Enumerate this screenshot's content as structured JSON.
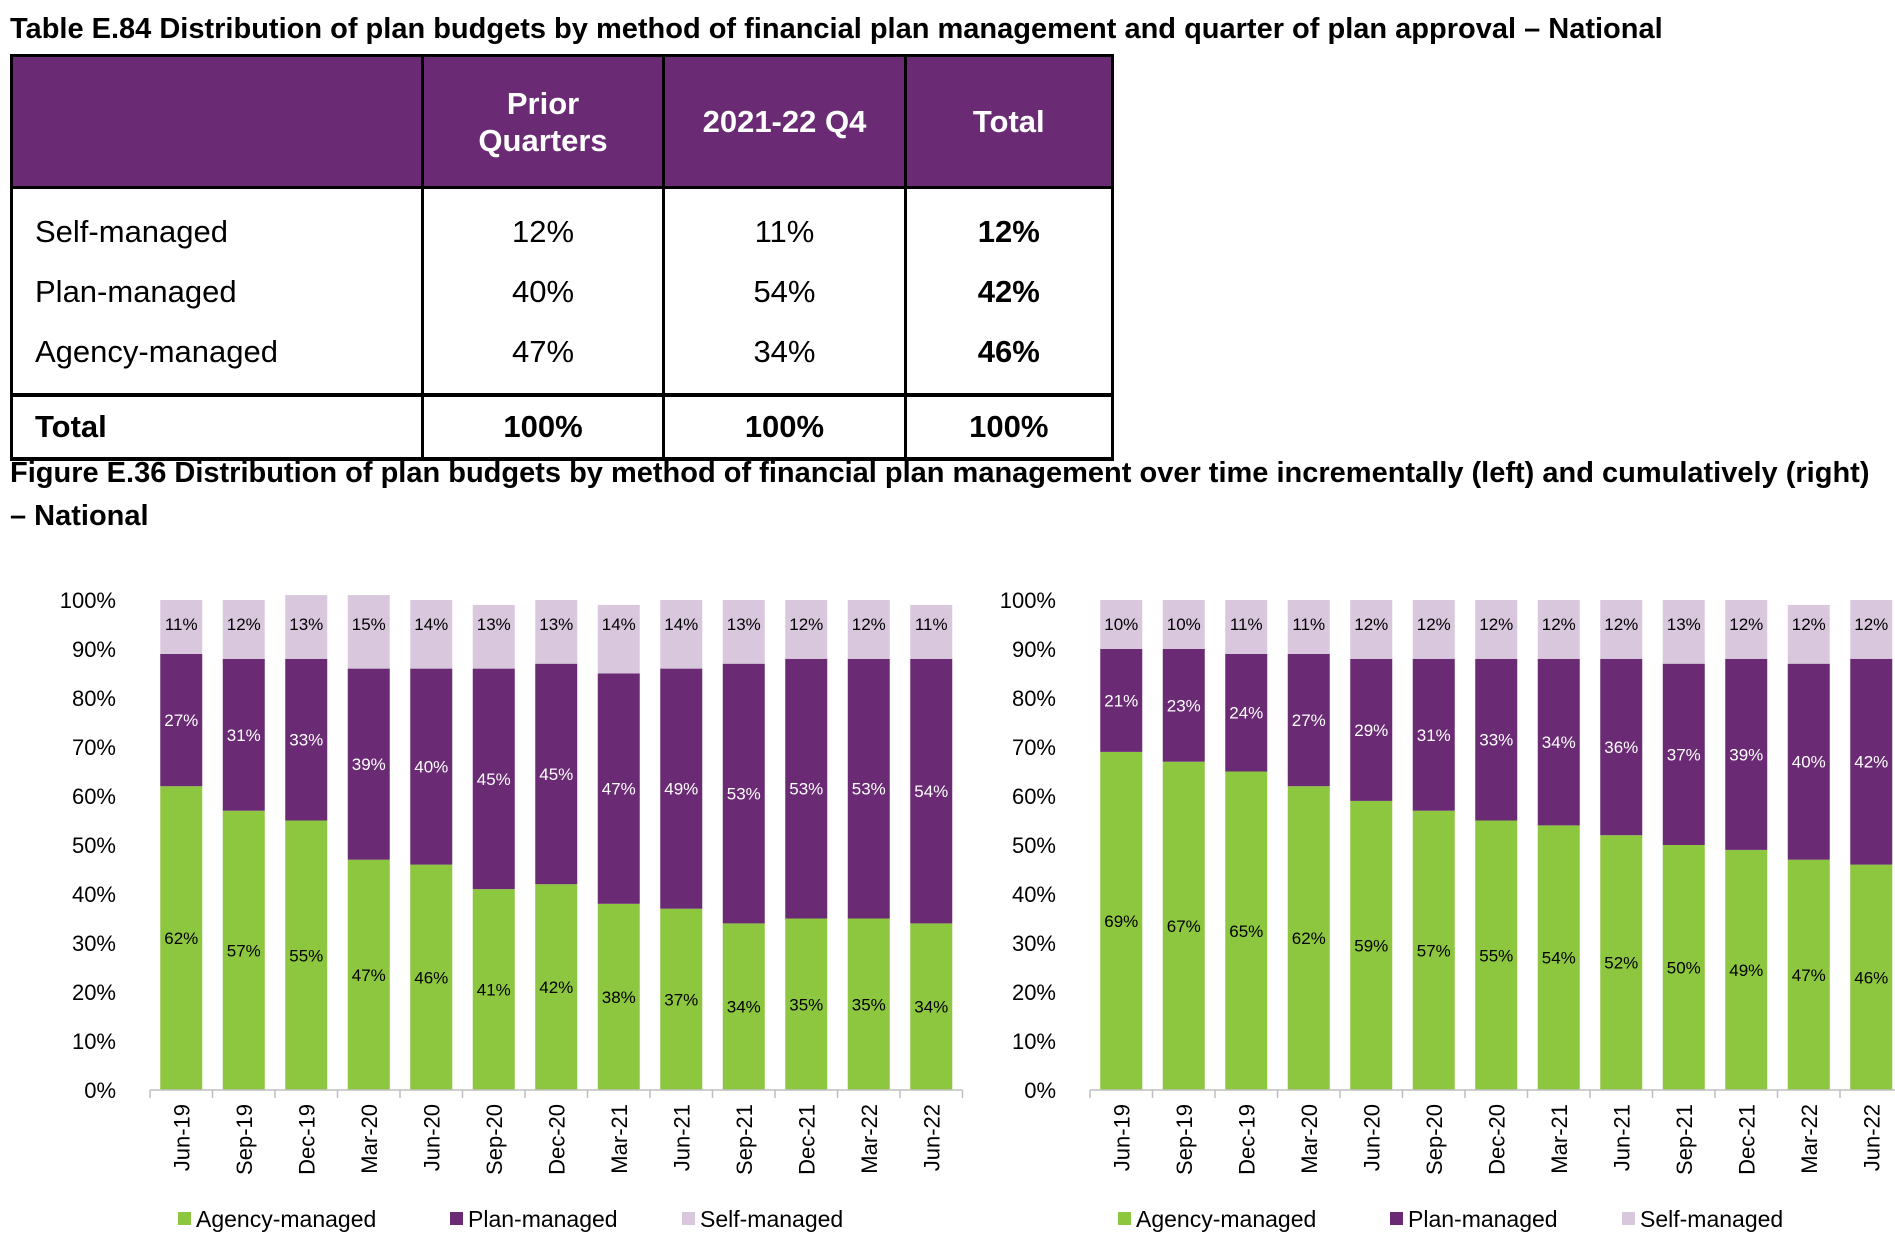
{
  "table": {
    "title": "Table E.84 Distribution of plan budgets by method of financial plan management and quarter of plan approval – National",
    "headers": [
      "",
      "Prior Quarters",
      "2021-22 Q4",
      "Total"
    ],
    "rows": [
      {
        "label": "Self-managed",
        "prior": "12%",
        "q4": "11%",
        "total": "12%"
      },
      {
        "label": "Plan-managed",
        "prior": "40%",
        "q4": "54%",
        "total": "42%"
      },
      {
        "label": "Agency-managed",
        "prior": "47%",
        "q4": "34%",
        "total": "46%"
      }
    ],
    "total_row": {
      "label": "Total",
      "prior": "100%",
      "q4": "100%",
      "total": "100%"
    }
  },
  "figure": {
    "title": "Figure E.36 Distribution of plan budgets by method of financial plan management over time incrementally (left) and cumulatively (right) – National"
  },
  "colors": {
    "agency": "#8dc63f",
    "plan": "#6a2a74",
    "self": "#d9c8dd",
    "header_bg": "#6a2a74"
  },
  "chart_data": [
    {
      "type": "bar",
      "stacked": true,
      "categories": [
        "Jun-19",
        "Sep-19",
        "Dec-19",
        "Mar-20",
        "Jun-20",
        "Sep-20",
        "Dec-20",
        "Mar-21",
        "Jun-21",
        "Sep-21",
        "Dec-21",
        "Mar-22",
        "Jun-22"
      ],
      "series": [
        {
          "name": "Agency-managed",
          "values": [
            62,
            57,
            55,
            47,
            46,
            41,
            42,
            38,
            37,
            34,
            35,
            35,
            34
          ],
          "labels": [
            "62%",
            "57%",
            "55%",
            "47%",
            "46%",
            "41%",
            "42%",
            "38%",
            "37%",
            "34%",
            "35%",
            "35%",
            "34%"
          ]
        },
        {
          "name": "Plan-managed",
          "values": [
            27,
            31,
            33,
            39,
            40,
            45,
            45,
            47,
            49,
            53,
            53,
            53,
            54
          ],
          "labels": [
            "27%",
            "31%",
            "33%",
            "39%",
            "40%",
            "45%",
            "45%",
            "47%",
            "49%",
            "53%",
            "53%",
            "53%",
            "54%"
          ]
        },
        {
          "name": "Self-managed",
          "values": [
            11,
            12,
            13,
            15,
            14,
            13,
            13,
            14,
            14,
            13,
            12,
            12,
            11
          ],
          "labels": [
            "11%",
            "12%",
            "13%",
            "15%",
            "14%",
            "13%",
            "13%",
            "14%",
            "14%",
            "13%",
            "12%",
            "12%",
            "11%"
          ]
        }
      ],
      "yticks": [
        "0%",
        "10%",
        "20%",
        "30%",
        "40%",
        "50%",
        "60%",
        "70%",
        "80%",
        "90%",
        "100%"
      ],
      "ylim": [
        0,
        100
      ],
      "legend": "bottom"
    },
    {
      "type": "bar",
      "stacked": true,
      "categories": [
        "Jun-19",
        "Sep-19",
        "Dec-19",
        "Mar-20",
        "Jun-20",
        "Sep-20",
        "Dec-20",
        "Mar-21",
        "Jun-21",
        "Sep-21",
        "Dec-21",
        "Mar-22",
        "Jun-22"
      ],
      "series": [
        {
          "name": "Agency-managed",
          "values": [
            69,
            67,
            65,
            62,
            59,
            57,
            55,
            54,
            52,
            50,
            49,
            47,
            46
          ],
          "labels": [
            "69%",
            "67%",
            "65%",
            "62%",
            "59%",
            "57%",
            "55%",
            "54%",
            "52%",
            "50%",
            "49%",
            "47%",
            "46%"
          ]
        },
        {
          "name": "Plan-managed",
          "values": [
            21,
            23,
            24,
            27,
            29,
            31,
            33,
            34,
            36,
            37,
            39,
            40,
            42
          ],
          "labels": [
            "21%",
            "23%",
            "24%",
            "27%",
            "29%",
            "31%",
            "33%",
            "34%",
            "36%",
            "37%",
            "39%",
            "40%",
            "42%"
          ]
        },
        {
          "name": "Self-managed",
          "values": [
            10,
            10,
            11,
            11,
            12,
            12,
            12,
            12,
            12,
            13,
            12,
            12,
            12
          ],
          "labels": [
            "10%",
            "10%",
            "11%",
            "11%",
            "12%",
            "12%",
            "12%",
            "12%",
            "12%",
            "13%",
            "12%",
            "12%",
            "12%"
          ]
        }
      ],
      "yticks": [
        "0%",
        "10%",
        "20%",
        "30%",
        "40%",
        "50%",
        "60%",
        "70%",
        "80%",
        "90%",
        "100%"
      ],
      "ylim": [
        0,
        100
      ],
      "legend": "bottom"
    }
  ]
}
